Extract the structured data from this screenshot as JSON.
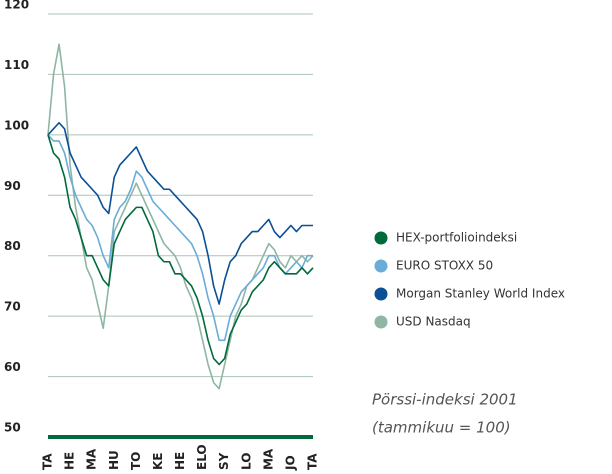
{
  "chart_data": {
    "type": "line",
    "title": "Pörssi-indeksi 2001",
    "subtitle": "(tammikuu = 100)",
    "categories": [
      "TA",
      null,
      null,
      null,
      "HE",
      null,
      null,
      null,
      "MA",
      null,
      null,
      null,
      "HU",
      null,
      null,
      null,
      "TO",
      null,
      null,
      null,
      "KE",
      null,
      null,
      null,
      "HE",
      null,
      null,
      null,
      "ELO",
      null,
      null,
      null,
      "SY",
      null,
      null,
      null,
      "LO",
      null,
      null,
      null,
      "MA",
      null,
      null,
      null,
      "JO",
      null,
      null,
      null,
      "TA"
    ],
    "series": [
      {
        "name": "HEX-portfolioindeksi",
        "color": "#006a3c",
        "values": [
          100,
          97,
          96,
          93,
          88,
          86,
          83,
          80,
          80,
          78,
          76,
          75,
          82,
          84,
          86,
          87,
          88,
          88,
          86,
          84,
          80,
          79,
          79,
          77,
          77,
          76,
          75,
          73,
          70,
          66,
          63,
          62,
          63,
          67,
          69,
          71,
          72,
          74,
          75,
          76,
          78,
          79,
          78,
          77,
          77,
          77,
          78,
          77,
          78
        ]
      },
      {
        "name": "EURO STOXX 50",
        "color": "#6aacd9",
        "values": [
          100,
          99,
          99,
          97,
          93,
          90,
          88,
          86,
          85,
          83,
          80,
          78,
          86,
          88,
          89,
          91,
          94,
          93,
          91,
          89,
          88,
          87,
          86,
          85,
          84,
          83,
          82,
          80,
          77,
          73,
          70,
          66,
          66,
          70,
          72,
          74,
          75,
          76,
          77,
          78,
          80,
          80,
          78,
          77,
          78,
          79,
          78,
          80,
          80
        ]
      },
      {
        "name": "Morgan Stanley World Index",
        "color": "#0b4f96",
        "values": [
          100,
          101,
          102,
          101,
          97,
          95,
          93,
          92,
          91,
          90,
          88,
          87,
          93,
          95,
          96,
          97,
          98,
          96,
          94,
          93,
          92,
          91,
          91,
          90,
          89,
          88,
          87,
          86,
          84,
          80,
          75,
          72,
          76,
          79,
          80,
          82,
          83,
          84,
          84,
          85,
          86,
          84,
          83,
          84,
          85,
          84,
          85,
          85,
          85
        ]
      },
      {
        "name": "USD Nasdaq",
        "color": "#8fb5a3",
        "values": [
          100,
          110,
          115,
          108,
          95,
          88,
          83,
          78,
          76,
          72,
          68,
          75,
          84,
          86,
          88,
          90,
          92,
          90,
          88,
          86,
          84,
          82,
          81,
          80,
          78,
          75,
          73,
          70,
          66,
          62,
          59,
          58,
          62,
          66,
          70,
          72,
          75,
          76,
          78,
          80,
          82,
          81,
          79,
          78,
          80,
          79,
          80,
          79,
          80
        ]
      }
    ],
    "ylim": [
      50,
      120
    ],
    "yticks": [
      50,
      60,
      70,
      80,
      90,
      100,
      110,
      120
    ],
    "grid": true
  }
}
